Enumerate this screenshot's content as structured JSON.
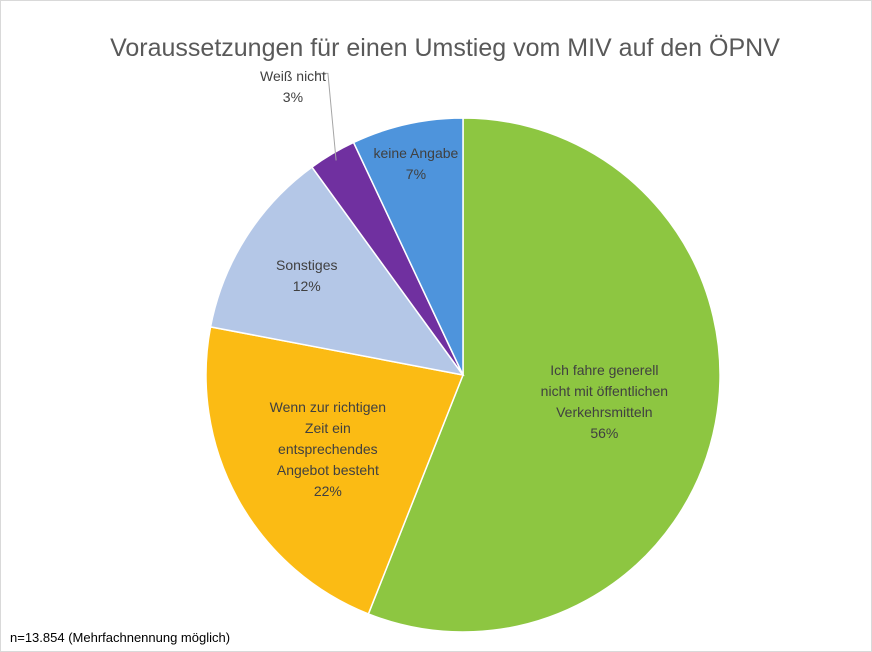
{
  "chart_data": {
    "type": "pie",
    "title": "Voraussetzungen für einen Umstieg vom MIV auf den ÖPNV",
    "note": "n=13.854 (Mehrfachnennung möglich)",
    "categories": [
      "Ich fahre generell nicht mit öffentlichen Verkehrsmitteln",
      "Wenn zur richtigen Zeit ein entsprechendes Angebot besteht",
      "Sonstiges",
      "Weiß nicht",
      "keine Angabe"
    ],
    "values": [
      56,
      22,
      12,
      3,
      7
    ],
    "value_labels": [
      "56%",
      "22%",
      "12%",
      "3%",
      "7%"
    ],
    "colors": [
      "#8dc641",
      "#fbbb14",
      "#b4c7e7",
      "#7030a0",
      "#4e94dc"
    ]
  }
}
